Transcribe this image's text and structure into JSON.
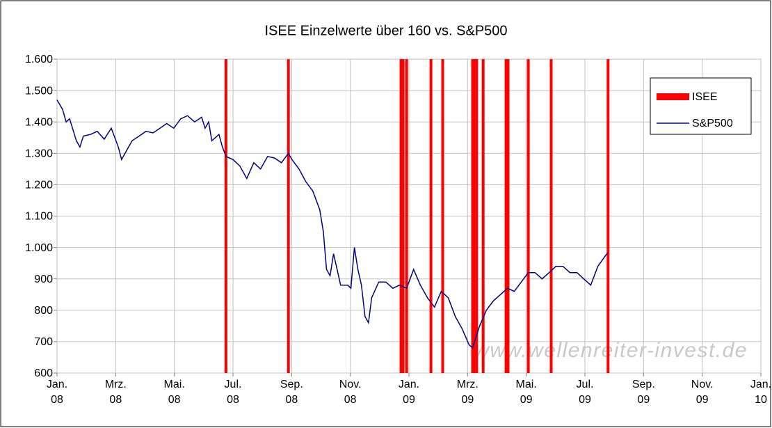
{
  "chart_data": {
    "type": "line",
    "title": "ISEE Einzelwerte über 160 vs. S&P500",
    "annotation": "www.wellenreiter-invest.de",
    "xlim": [
      0,
      24
    ],
    "xticks": [
      {
        "value": 0,
        "label": "Jan. 08"
      },
      {
        "value": 2,
        "label": "Mrz. 08"
      },
      {
        "value": 4,
        "label": "Mai. 08"
      },
      {
        "value": 6,
        "label": "Jul. 08"
      },
      {
        "value": 8,
        "label": "Sep. 08"
      },
      {
        "value": 10,
        "label": "Nov. 08"
      },
      {
        "value": 12,
        "label": "Jan. 09"
      },
      {
        "value": 14,
        "label": "Mrz. 09"
      },
      {
        "value": 16,
        "label": "Mai. 09"
      },
      {
        "value": 18,
        "label": "Jul. 09"
      },
      {
        "value": 20,
        "label": "Sep. 09"
      },
      {
        "value": 22,
        "label": "Nov. 09"
      },
      {
        "value": 24,
        "label": "Jan. 10"
      }
    ],
    "ylim": [
      600,
      1600
    ],
    "yticks": [
      600,
      700,
      800,
      900,
      {
        "value": 1000,
        "label": "1.000"
      },
      {
        "value": 1100,
        "label": "1.100"
      },
      {
        "value": 1200,
        "label": "1.200"
      },
      {
        "value": 1300,
        "label": "1.300"
      },
      {
        "value": 1400,
        "label": "1.400"
      },
      {
        "value": 1500,
        "label": "1.500"
      },
      {
        "value": 1600,
        "label": "1.600"
      }
    ],
    "grid": true,
    "legend": "upper right",
    "series": [
      {
        "name": "ISEE",
        "type": "bar",
        "color": "#ff0000",
        "x": [
          5.76,
          7.89,
          11.73,
          11.8,
          11.92,
          12.75,
          13.15,
          14.17,
          14.24,
          14.31,
          14.53,
          15.31,
          15.38,
          16.07,
          16.85,
          18.79
        ],
        "values": [
          1600,
          1600,
          1600,
          1600,
          1600,
          1600,
          1600,
          1600,
          1600,
          1600,
          1600,
          1600,
          1600,
          1600,
          1600,
          1600
        ]
      },
      {
        "name": "S&P500",
        "color": "#000080",
        "x": [
          0,
          0.19,
          0.31,
          0.43,
          0.66,
          0.78,
          0.9,
          1.14,
          1.37,
          1.61,
          1.85,
          2.09,
          2.2,
          2.32,
          2.56,
          2.8,
          3.03,
          3.27,
          3.51,
          3.74,
          3.98,
          4.22,
          4.45,
          4.69,
          4.93,
          5.05,
          5.17,
          5.28,
          5.52,
          5.64,
          5.76,
          6.0,
          6.23,
          6.47,
          6.71,
          6.94,
          7.18,
          7.42,
          7.65,
          7.89,
          8.01,
          8.25,
          8.48,
          8.72,
          8.96,
          9.08,
          9.19,
          9.31,
          9.43,
          9.67,
          9.91,
          10.02,
          10.14,
          10.26,
          10.38,
          10.5,
          10.62,
          10.73,
          10.97,
          11.21,
          11.45,
          11.68,
          11.92,
          12.04,
          12.16,
          12.39,
          12.63,
          12.87,
          13.1,
          13.34,
          13.58,
          13.82,
          14.05,
          14.17,
          14.41,
          14.64,
          14.88,
          15.12,
          15.36,
          15.59,
          15.83,
          16.07,
          16.3,
          16.54,
          16.78,
          17.01,
          17.25,
          17.49,
          17.73,
          17.96,
          18.2,
          18.44,
          18.67,
          18.79
        ],
        "values": [
          1470,
          1440,
          1400,
          1410,
          1340,
          1320,
          1355,
          1360,
          1370,
          1345,
          1380,
          1320,
          1280,
          1300,
          1340,
          1355,
          1370,
          1365,
          1380,
          1395,
          1380,
          1410,
          1420,
          1400,
          1415,
          1380,
          1400,
          1340,
          1360,
          1320,
          1290,
          1280,
          1260,
          1220,
          1270,
          1250,
          1290,
          1285,
          1270,
          1300,
          1280,
          1250,
          1210,
          1180,
          1120,
          1050,
          930,
          910,
          980,
          880,
          880,
          870,
          1000,
          930,
          880,
          780,
          760,
          840,
          890,
          890,
          870,
          880,
          870,
          900,
          930,
          880,
          840,
          810,
          860,
          840,
          780,
          740,
          690,
          680,
          750,
          800,
          830,
          850,
          870,
          860,
          890,
          920,
          920,
          900,
          920,
          940,
          940,
          920,
          920,
          900,
          880,
          940,
          970,
          985
        ]
      }
    ]
  }
}
